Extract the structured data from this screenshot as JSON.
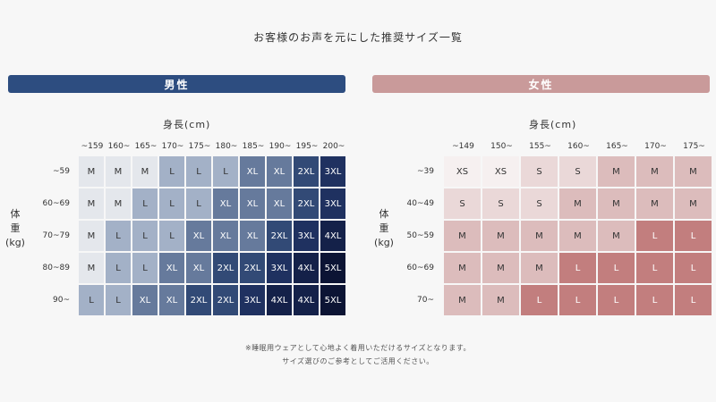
{
  "title": "お客様のお声を元にした推奨サイズ一覧",
  "men": {
    "banner": "男性",
    "height_label": "身長(cm)",
    "weight_label": [
      "体",
      "重",
      "(kg)"
    ],
    "heights": [
      "~159",
      "160~",
      "165~",
      "170~",
      "175~",
      "180~",
      "185~",
      "190~",
      "195~",
      "200~"
    ],
    "weights": [
      "~59",
      "60~69",
      "70~79",
      "80~89",
      "90~"
    ],
    "grid": [
      [
        "M",
        "M",
        "M",
        "L",
        "L",
        "L",
        "XL",
        "XL",
        "2XL",
        "3XL"
      ],
      [
        "M",
        "M",
        "L",
        "L",
        "L",
        "XL",
        "XL",
        "XL",
        "2XL",
        "3XL"
      ],
      [
        "M",
        "L",
        "L",
        "L",
        "XL",
        "XL",
        "XL",
        "2XL",
        "3XL",
        "4XL"
      ],
      [
        "M",
        "L",
        "L",
        "XL",
        "XL",
        "2XL",
        "2XL",
        "3XL",
        "4XL",
        "5XL"
      ],
      [
        "L",
        "L",
        "XL",
        "XL",
        "2XL",
        "2XL",
        "3XL",
        "4XL",
        "4XL",
        "5XL"
      ]
    ]
  },
  "women": {
    "banner": "女性",
    "height_label": "身長(cm)",
    "weight_label": [
      "体",
      "重",
      "(kg)"
    ],
    "heights": [
      "~149",
      "150~",
      "155~",
      "160~",
      "165~",
      "170~",
      "175~"
    ],
    "weights": [
      "~39",
      "40~49",
      "50~59",
      "60~69",
      "70~"
    ],
    "grid": [
      [
        "XS",
        "XS",
        "S",
        "S",
        "M",
        "M",
        "M"
      ],
      [
        "S",
        "S",
        "S",
        "M",
        "M",
        "M",
        "M"
      ],
      [
        "M",
        "M",
        "M",
        "M",
        "M",
        "L",
        "L"
      ],
      [
        "M",
        "M",
        "M",
        "L",
        "L",
        "L",
        "L"
      ],
      [
        "M",
        "M",
        "L",
        "L",
        "L",
        "L",
        "L"
      ]
    ]
  },
  "colors": {
    "men": {
      "M": "#e4e7ec",
      "L": "#a3b1c7",
      "XL": "#667a9c",
      "2XL": "#324a76",
      "3XL": "#1f3160",
      "4XL": "#142149",
      "5XL": "#0c1434"
    },
    "men_text": {
      "M": "#333333",
      "L": "#333333",
      "XL": "#ffffff",
      "2XL": "#ffffff",
      "3XL": "#ffffff",
      "4XL": "#ffffff",
      "5XL": "#ffffff"
    },
    "women": {
      "XS": "#f6f0f0",
      "S": "#ead8d8",
      "M": "#dcbcbc",
      "L": "#c27e7e"
    },
    "women_text": {
      "XS": "#333333",
      "S": "#333333",
      "M": "#333333",
      "L": "#ffffff"
    }
  },
  "notes": [
    "※睡眠用ウェアとして心地よく着用いただけるサイズとなります。",
    "サイズ選びのご参考としてご活用ください。"
  ]
}
